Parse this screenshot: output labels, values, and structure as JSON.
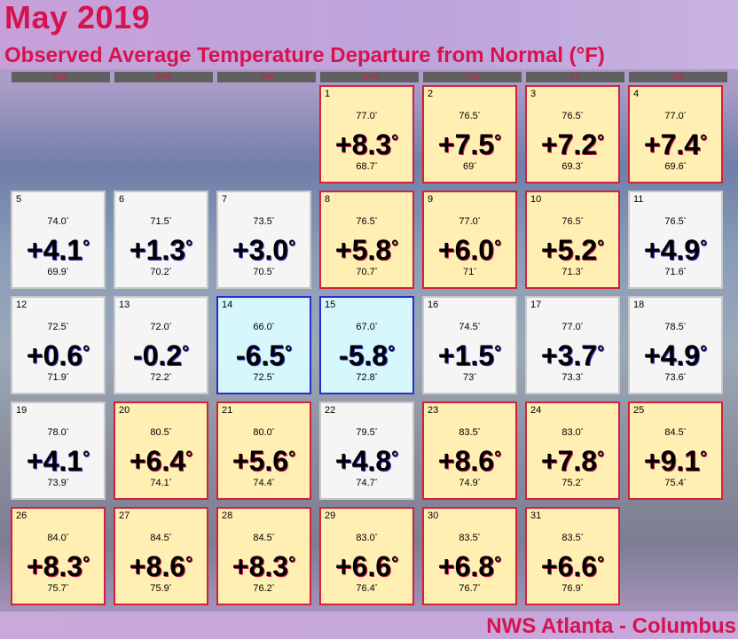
{
  "header": {
    "title": "May 2019",
    "subtitle": "Observed Average Temperature Departure from Normal (°F)"
  },
  "weekdays": [
    "Sun",
    "Mon",
    "Tue",
    "Wed",
    "Thu",
    "Fri",
    "Sat"
  ],
  "degree_symbol": "°",
  "days": [
    {
      "day": "1",
      "avg": "77.0",
      "dep": "+8.3",
      "normal": "68.7",
      "cat": "warm"
    },
    {
      "day": "2",
      "avg": "76.5",
      "dep": "+7.5",
      "normal": "69",
      "cat": "warm"
    },
    {
      "day": "3",
      "avg": "76.5",
      "dep": "+7.2",
      "normal": "69.3",
      "cat": "warm"
    },
    {
      "day": "4",
      "avg": "77.0",
      "dep": "+7.4",
      "normal": "69.6",
      "cat": "warm"
    },
    {
      "day": "5",
      "avg": "74.0",
      "dep": "+4.1",
      "normal": "69.9",
      "cat": "neutral"
    },
    {
      "day": "6",
      "avg": "71.5",
      "dep": "+1.3",
      "normal": "70.2",
      "cat": "neutral"
    },
    {
      "day": "7",
      "avg": "73.5",
      "dep": "+3.0",
      "normal": "70.5",
      "cat": "neutral"
    },
    {
      "day": "8",
      "avg": "76.5",
      "dep": "+5.8",
      "normal": "70.7",
      "cat": "warm"
    },
    {
      "day": "9",
      "avg": "77.0",
      "dep": "+6.0",
      "normal": "71",
      "cat": "warm"
    },
    {
      "day": "10",
      "avg": "76.5",
      "dep": "+5.2",
      "normal": "71.3",
      "cat": "warm"
    },
    {
      "day": "11",
      "avg": "76.5",
      "dep": "+4.9",
      "normal": "71.6",
      "cat": "neutral"
    },
    {
      "day": "12",
      "avg": "72.5",
      "dep": "+0.6",
      "normal": "71.9",
      "cat": "neutral"
    },
    {
      "day": "13",
      "avg": "72.0",
      "dep": "-0.2",
      "normal": "72.2",
      "cat": "neutral"
    },
    {
      "day": "14",
      "avg": "66.0",
      "dep": "-6.5",
      "normal": "72.5",
      "cat": "cool"
    },
    {
      "day": "15",
      "avg": "67.0",
      "dep": "-5.8",
      "normal": "72.8",
      "cat": "cool"
    },
    {
      "day": "16",
      "avg": "74.5",
      "dep": "+1.5",
      "normal": "73",
      "cat": "neutral"
    },
    {
      "day": "17",
      "avg": "77.0",
      "dep": "+3.7",
      "normal": "73.3",
      "cat": "neutral"
    },
    {
      "day": "18",
      "avg": "78.5",
      "dep": "+4.9",
      "normal": "73.6",
      "cat": "neutral"
    },
    {
      "day": "19",
      "avg": "78.0",
      "dep": "+4.1",
      "normal": "73.9",
      "cat": "neutral"
    },
    {
      "day": "20",
      "avg": "80.5",
      "dep": "+6.4",
      "normal": "74.1",
      "cat": "warm"
    },
    {
      "day": "21",
      "avg": "80.0",
      "dep": "+5.6",
      "normal": "74.4",
      "cat": "warm"
    },
    {
      "day": "22",
      "avg": "79.5",
      "dep": "+4.8",
      "normal": "74.7",
      "cat": "neutral"
    },
    {
      "day": "23",
      "avg": "83.5",
      "dep": "+8.6",
      "normal": "74.9",
      "cat": "warm"
    },
    {
      "day": "24",
      "avg": "83.0",
      "dep": "+7.8",
      "normal": "75.2",
      "cat": "warm"
    },
    {
      "day": "25",
      "avg": "84.5",
      "dep": "+9.1",
      "normal": "75.4",
      "cat": "warm"
    },
    {
      "day": "26",
      "avg": "84.0",
      "dep": "+8.3",
      "normal": "75.7",
      "cat": "warm"
    },
    {
      "day": "27",
      "avg": "84.5",
      "dep": "+8.6",
      "normal": "75.9",
      "cat": "warm"
    },
    {
      "day": "28",
      "avg": "84.5",
      "dep": "+8.3",
      "normal": "76.2",
      "cat": "warm"
    },
    {
      "day": "29",
      "avg": "83.0",
      "dep": "+6.6",
      "normal": "76.4",
      "cat": "warm"
    },
    {
      "day": "30",
      "avg": "83.5",
      "dep": "+6.8",
      "normal": "76.7",
      "cat": "warm"
    },
    {
      "day": "31",
      "avg": "83.5",
      "dep": "+6.6",
      "normal": "76.9",
      "cat": "warm"
    }
  ],
  "footer": {
    "credit": "NWS Atlanta - Columbus"
  },
  "colors": {
    "warm_fill": "#ffefb3",
    "warm_border": "#d2213a",
    "cool_fill": "#d6f8fc",
    "cool_border": "#2b2bd0",
    "neutral_fill": "#f5f5f5",
    "title_red": "#d6134f"
  }
}
